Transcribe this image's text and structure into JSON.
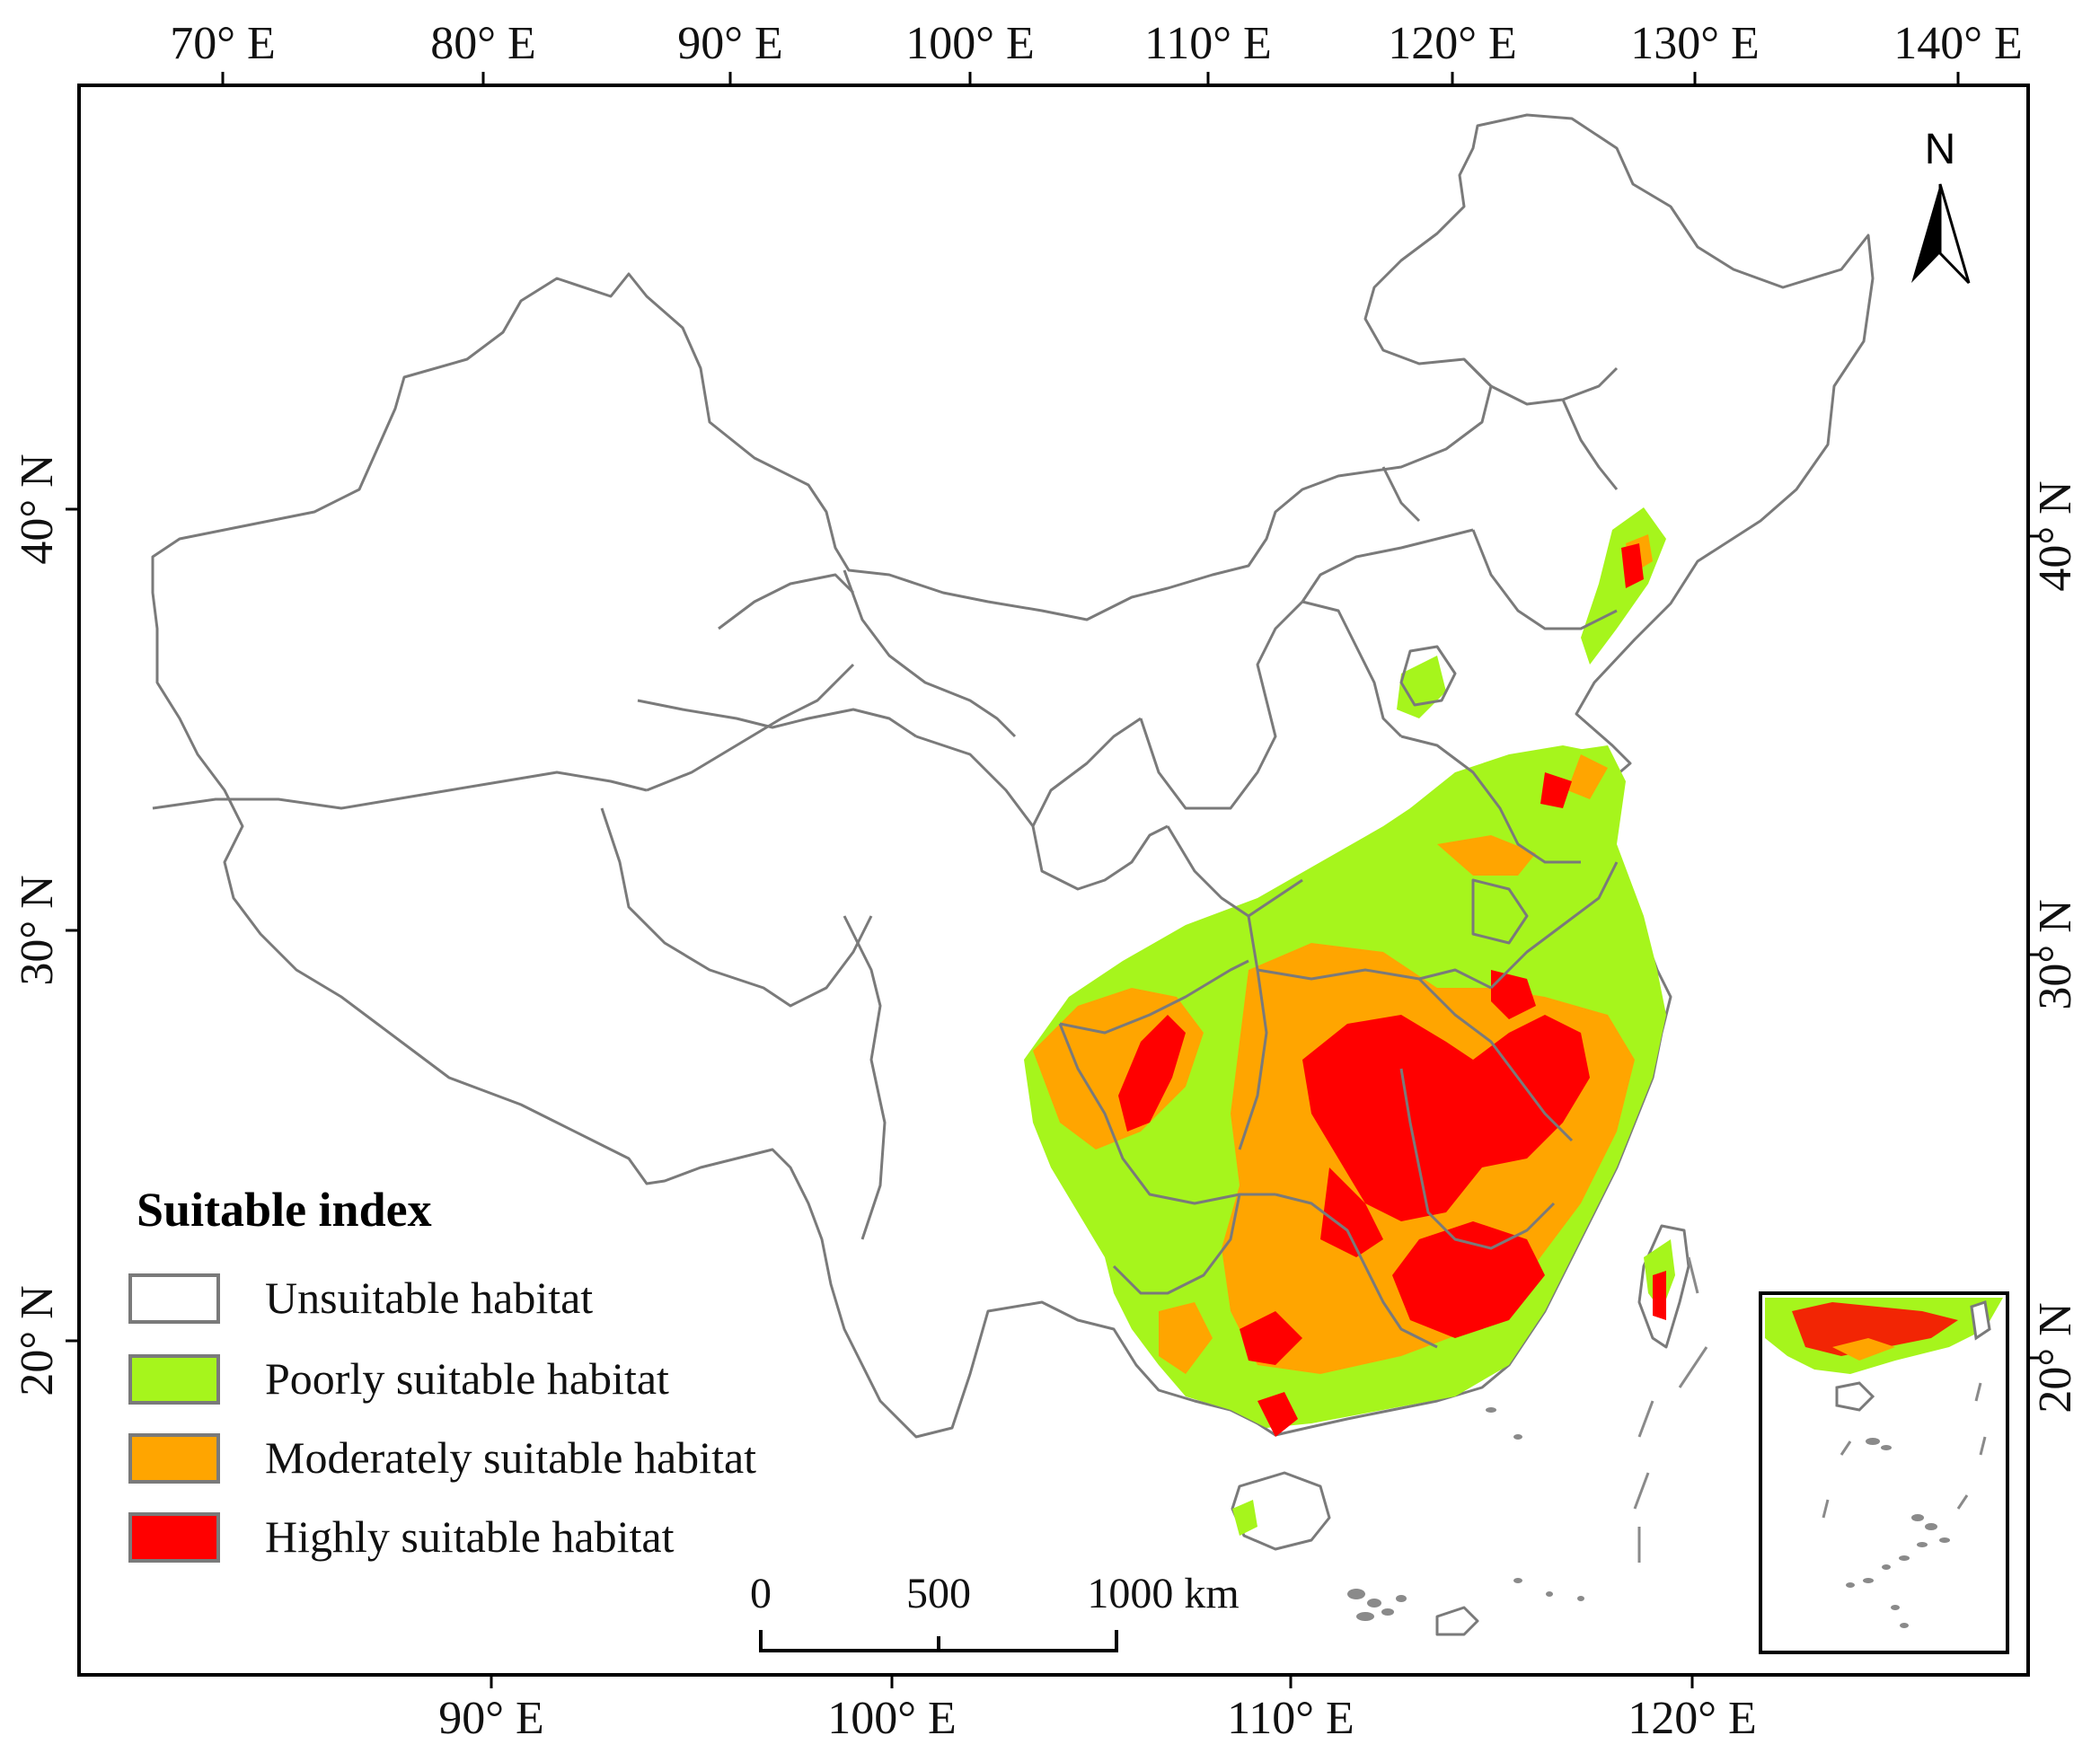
{
  "axes": {
    "top_longitudes": [
      "70° E",
      "80° E",
      "90° E",
      "100° E",
      "110° E",
      "120° E",
      "130° E",
      "140° E"
    ],
    "bottom_longitudes": [
      "90° E",
      "100° E",
      "110° E",
      "120° E"
    ],
    "left_latitudes": [
      "40° N",
      "30° N",
      "20° N"
    ],
    "right_latitudes": [
      "40° N",
      "30° N",
      "20° N"
    ]
  },
  "north_arrow": {
    "label": "N",
    "icon": "north-arrow-icon"
  },
  "legend": {
    "title": "Suitable index",
    "items": [
      {
        "label": "Unsuitable habitat",
        "color": "#ffffff"
      },
      {
        "label": "Poorly suitable habitat",
        "color": "#a6f51c"
      },
      {
        "label": "Moderately suitable habitat",
        "color": "#ffa500"
      },
      {
        "label": "Highly suitable habitat",
        "color": "#ff0000"
      }
    ]
  },
  "scale_bar": {
    "labels": [
      "0",
      "500",
      "1000 km"
    ]
  },
  "colors": {
    "boundary": "#7a7a7a",
    "frame": "#000000"
  }
}
